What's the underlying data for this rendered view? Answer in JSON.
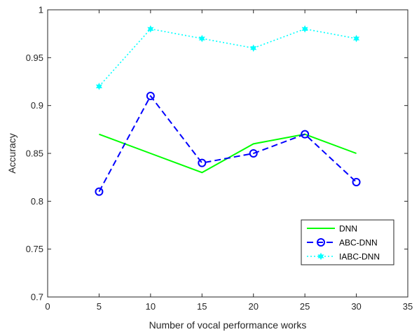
{
  "chart_data": {
    "type": "line",
    "xlabel": "Number of vocal performance works",
    "ylabel": "Accuracy",
    "xlim": [
      0,
      35
    ],
    "ylim": [
      0.7,
      1
    ],
    "xticks": [
      "0",
      "5",
      "10",
      "15",
      "20",
      "25",
      "30",
      "35"
    ],
    "yticks": [
      "0.7",
      "0.75",
      "0.8",
      "0.85",
      "0.9",
      "0.95",
      "1"
    ],
    "grid": false,
    "legend_position": "bottom-right",
    "x": [
      5,
      10,
      15,
      20,
      25,
      30
    ],
    "series": [
      {
        "name": "DNN",
        "values": [
          0.87,
          0.85,
          0.83,
          0.86,
          0.87,
          0.85
        ],
        "color": "#00ff00",
        "line": "solid",
        "marker": "none"
      },
      {
        "name": "ABC-DNN",
        "values": [
          0.81,
          0.91,
          0.84,
          0.85,
          0.87,
          0.82
        ],
        "color": "#0000ff",
        "line": "dashed",
        "marker": "circle-open"
      },
      {
        "name": "IABC-DNN",
        "values": [
          0.92,
          0.98,
          0.97,
          0.96,
          0.98,
          0.97
        ],
        "color": "#00ffff",
        "line": "dotted",
        "marker": "star-filled"
      }
    ]
  }
}
